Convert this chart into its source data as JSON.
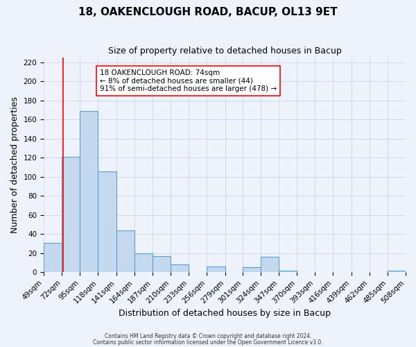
{
  "title": "18, OAKENCLOUGH ROAD, BACUP, OL13 9ET",
  "subtitle": "Size of property relative to detached houses in Bacup",
  "xlabel": "Distribution of detached houses by size in Bacup",
  "ylabel": "Number of detached properties",
  "bar_left_edges": [
    49,
    72,
    95,
    118,
    141,
    164,
    187,
    210,
    233,
    256,
    279,
    301,
    324,
    347,
    370,
    393,
    416,
    439,
    462,
    485
  ],
  "bar_heights": [
    31,
    121,
    169,
    106,
    44,
    20,
    17,
    8,
    0,
    6,
    0,
    5,
    16,
    2,
    0,
    0,
    0,
    0,
    0,
    2
  ],
  "bin_width": 23,
  "bar_color": "#c5d9ee",
  "bar_edge_color": "#5a9fd4",
  "red_line_x": 74,
  "ylim": [
    0,
    225
  ],
  "yticks": [
    0,
    20,
    40,
    60,
    80,
    100,
    120,
    140,
    160,
    180,
    200,
    220
  ],
  "xtick_labels": [
    "49sqm",
    "72sqm",
    "95sqm",
    "118sqm",
    "141sqm",
    "164sqm",
    "187sqm",
    "210sqm",
    "233sqm",
    "256sqm",
    "279sqm",
    "301sqm",
    "324sqm",
    "347sqm",
    "370sqm",
    "393sqm",
    "416sqm",
    "439sqm",
    "462sqm",
    "485sqm",
    "508sqm"
  ],
  "annotation_box_text": "18 OAKENCLOUGH ROAD: 74sqm\n← 8% of detached houses are smaller (44)\n91% of semi-detached houses are larger (478) →",
  "footnote1": "Contains HM Land Registry data © Crown copyright and database right 2024.",
  "footnote2": "Contains public sector information licensed under the Open Government Licence v3.0.",
  "bg_color": "#eef2fb",
  "grid_color": "#d0d8ec",
  "title_fontsize": 11,
  "subtitle_fontsize": 9,
  "label_fontsize": 9,
  "tick_fontsize": 7.5
}
